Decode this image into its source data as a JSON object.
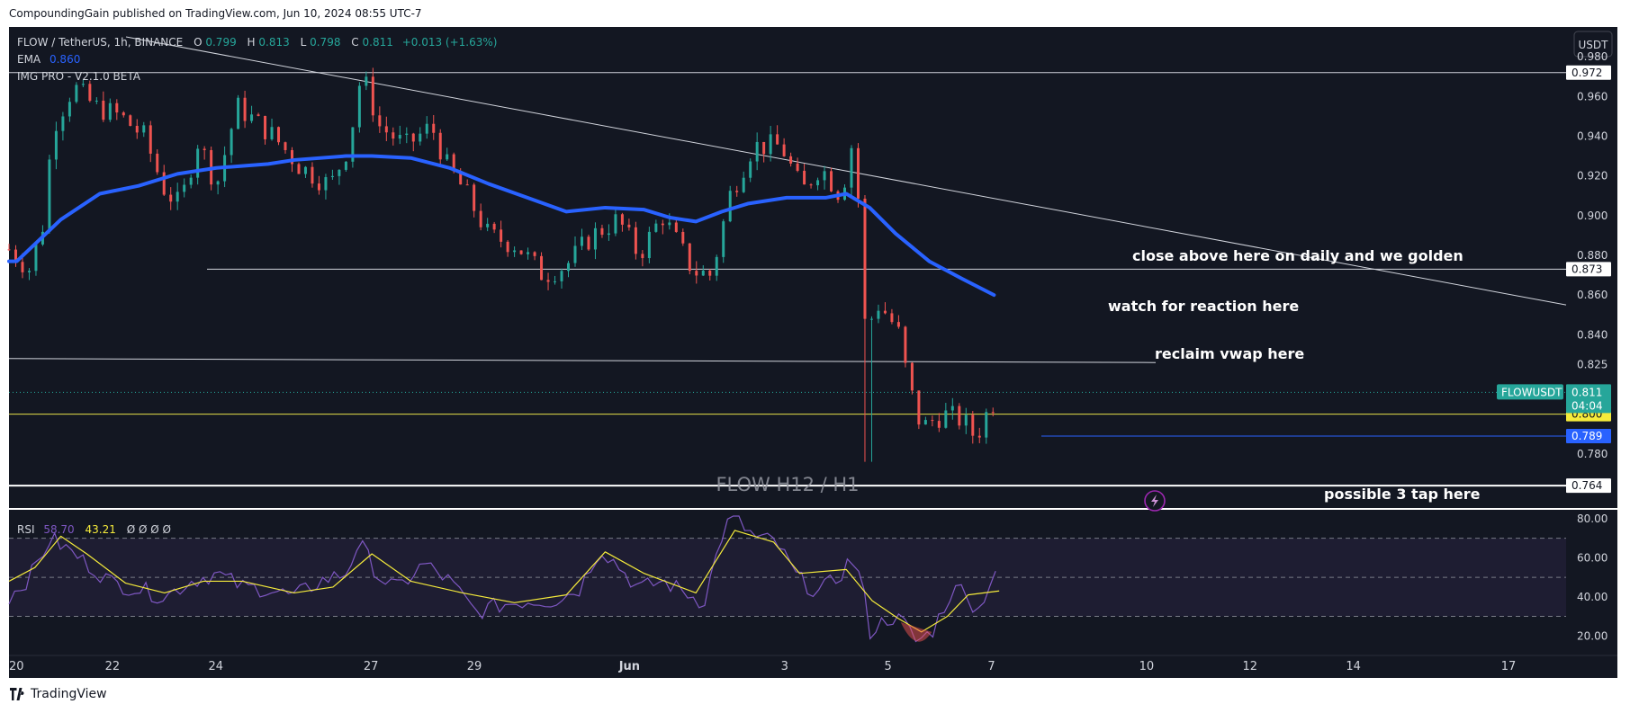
{
  "header": {
    "published": "CompoundingGain published on TradingView.com, Jun 10, 2024 08:55 UTC-7",
    "brand": "TradingView"
  },
  "legend": {
    "symbol": "FLOW / TetherUS, 1h, BINANCE",
    "o_label": "O",
    "o": "0.799",
    "h_label": "H",
    "h": "0.813",
    "l_label": "L",
    "l": "0.798",
    "c_label": "C",
    "c": "0.811",
    "change": "+0.013 (+1.63%)",
    "ema_label": "EMA",
    "ema": "0.860",
    "indicator": "IMG PRO - V2.1.0 BETA",
    "rsi_label": "RSI",
    "rsi": "58.70",
    "rsi_ma": "43.21",
    "rsi_extra": "Ø Ø Ø Ø"
  },
  "currency": "USDT",
  "watermark": "FLOW H12 / H1",
  "annotations": {
    "golden": "close above here on daily and we golden",
    "reaction": "watch for reaction here",
    "vwap": "reclaim vwap here",
    "tap": "possible 3 tap here"
  },
  "colors": {
    "background": "#131722",
    "ema": "#2962ff",
    "up": "#26a69a",
    "down": "#ef5350",
    "rsi": "#7e57c2",
    "rsi_ma": "#f5eb3b",
    "yellow_line": "#e5e04a",
    "blue_line": "#2962ff"
  },
  "chart_data": [
    {
      "type": "candlestick",
      "title": "FLOW / TetherUS, 1h, BINANCE",
      "ylim": [
        0.76,
        0.99
      ],
      "x_ticks": [
        "20",
        "22",
        "24",
        "27",
        "29",
        "Jun",
        "3",
        "5",
        "7",
        "10",
        "12",
        "14",
        "17"
      ],
      "y_ticks": [
        "0.980",
        "0.960",
        "0.940",
        "0.920",
        "0.900",
        "0.880",
        "0.860",
        "0.840",
        "0.825",
        "0.780"
      ],
      "price_labels": [
        {
          "name": "high",
          "value": 0.972,
          "label": "0.972"
        },
        {
          "name": "daily-level",
          "value": 0.873,
          "label": "0.873"
        },
        {
          "name": "support-yellow",
          "value": 0.8,
          "label": "0.800"
        },
        {
          "name": "support-blue",
          "value": 0.789,
          "label": "0.789"
        },
        {
          "name": "tap-level",
          "value": 0.764,
          "label": "0.764"
        }
      ],
      "last_price": {
        "symbol": "FLOWUSDT",
        "value": 0.811,
        "label": "0.811",
        "countdown": "04:04"
      },
      "ema_series": [
        {
          "t": 0,
          "v": 0.877
        },
        {
          "t": 0.3,
          "v": 0.877
        },
        {
          "t": 2,
          "v": 0.898
        },
        {
          "t": 3.5,
          "v": 0.911
        },
        {
          "t": 5,
          "v": 0.915
        },
        {
          "t": 6.5,
          "v": 0.921
        },
        {
          "t": 8,
          "v": 0.924
        },
        {
          "t": 10,
          "v": 0.926
        },
        {
          "t": 11,
          "v": 0.928
        },
        {
          "t": 13,
          "v": 0.93
        },
        {
          "t": 14,
          "v": 0.93
        },
        {
          "t": 15.5,
          "v": 0.929
        },
        {
          "t": 17,
          "v": 0.924
        },
        {
          "t": 18.5,
          "v": 0.916
        },
        {
          "t": 20,
          "v": 0.909
        },
        {
          "t": 21.5,
          "v": 0.902
        },
        {
          "t": 23,
          "v": 0.904
        },
        {
          "t": 24.5,
          "v": 0.903
        },
        {
          "t": 25.5,
          "v": 0.899
        },
        {
          "t": 26.5,
          "v": 0.897
        },
        {
          "t": 27.5,
          "v": 0.902
        },
        {
          "t": 28.5,
          "v": 0.906
        },
        {
          "t": 30,
          "v": 0.909
        },
        {
          "t": 31.5,
          "v": 0.909
        },
        {
          "t": 32.3,
          "v": 0.911
        },
        {
          "t": 33.2,
          "v": 0.904
        },
        {
          "t": 34.2,
          "v": 0.891
        },
        {
          "t": 35.5,
          "v": 0.877
        },
        {
          "t": 36.8,
          "v": 0.868
        },
        {
          "t": 38,
          "v": 0.86
        }
      ],
      "price_path": [
        {
          "t": 0,
          "v": 0.883
        },
        {
          "t": 0.8,
          "v": 0.873
        },
        {
          "t": 1.3,
          "v": 0.895
        },
        {
          "t": 1.7,
          "v": 0.945
        },
        {
          "t": 2.5,
          "v": 0.965
        },
        {
          "t": 3.3,
          "v": 0.955
        },
        {
          "t": 4.3,
          "v": 0.95
        },
        {
          "t": 5.2,
          "v": 0.94
        },
        {
          "t": 6,
          "v": 0.913
        },
        {
          "t": 6.6,
          "v": 0.905
        },
        {
          "t": 7.3,
          "v": 0.938
        },
        {
          "t": 8,
          "v": 0.915
        },
        {
          "t": 8.8,
          "v": 0.955
        },
        {
          "t": 10.2,
          "v": 0.94
        },
        {
          "t": 11.2,
          "v": 0.925
        },
        {
          "t": 12.4,
          "v": 0.915
        },
        {
          "t": 13.1,
          "v": 0.935
        },
        {
          "t": 13.6,
          "v": 0.972
        },
        {
          "t": 14.3,
          "v": 0.945
        },
        {
          "t": 15.3,
          "v": 0.935
        },
        {
          "t": 16.3,
          "v": 0.945
        },
        {
          "t": 16.9,
          "v": 0.925
        },
        {
          "t": 17.6,
          "v": 0.912
        },
        {
          "t": 18.5,
          "v": 0.89
        },
        {
          "t": 19.6,
          "v": 0.885
        },
        {
          "t": 20.6,
          "v": 0.87
        },
        {
          "t": 21.5,
          "v": 0.875
        },
        {
          "t": 22.5,
          "v": 0.89
        },
        {
          "t": 23.5,
          "v": 0.898
        },
        {
          "t": 24.3,
          "v": 0.88
        },
        {
          "t": 25.2,
          "v": 0.9
        },
        {
          "t": 26.4,
          "v": 0.872
        },
        {
          "t": 27.1,
          "v": 0.87
        },
        {
          "t": 27.8,
          "v": 0.91
        },
        {
          "t": 28.7,
          "v": 0.935
        },
        {
          "t": 29.8,
          "v": 0.935
        },
        {
          "t": 30.6,
          "v": 0.912
        },
        {
          "t": 31.3,
          "v": 0.925
        },
        {
          "t": 32.1,
          "v": 0.91
        },
        {
          "t": 32.5,
          "v": 0.935
        },
        {
          "t": 32.8,
          "v": 0.905
        },
        {
          "t": 33.05,
          "v": 0.855
        },
        {
          "t": 33.6,
          "v": 0.855
        },
        {
          "t": 34.3,
          "v": 0.842
        },
        {
          "t": 34.7,
          "v": 0.815
        },
        {
          "t": 35.2,
          "v": 0.793
        },
        {
          "t": 36,
          "v": 0.8
        },
        {
          "t": 36.8,
          "v": 0.797
        },
        {
          "t": 37.3,
          "v": 0.788
        },
        {
          "t": 37.7,
          "v": 0.8
        },
        {
          "t": 38.2,
          "v": 0.811
        }
      ],
      "rsi": {
        "ylim": [
          10,
          85
        ],
        "y_ticks": [
          "80.00",
          "60.00",
          "40.00",
          "20.00"
        ],
        "bands": [
          70,
          50,
          30
        ],
        "rsi_series": [
          {
            "t": 0,
            "v": 40
          },
          {
            "t": 0.8,
            "v": 50
          },
          {
            "t": 1.6,
            "v": 70
          },
          {
            "t": 2.4,
            "v": 63
          },
          {
            "t": 3.2,
            "v": 55
          },
          {
            "t": 4,
            "v": 47
          },
          {
            "t": 5,
            "v": 44
          },
          {
            "t": 6,
            "v": 40
          },
          {
            "t": 7,
            "v": 48
          },
          {
            "t": 8,
            "v": 52
          },
          {
            "t": 9,
            "v": 45
          },
          {
            "t": 10,
            "v": 44
          },
          {
            "t": 11,
            "v": 40
          },
          {
            "t": 12,
            "v": 48
          },
          {
            "t": 13,
            "v": 52
          },
          {
            "t": 13.5,
            "v": 68
          },
          {
            "t": 14.3,
            "v": 50
          },
          {
            "t": 15,
            "v": 44
          },
          {
            "t": 16,
            "v": 57
          },
          {
            "t": 17,
            "v": 48
          },
          {
            "t": 18,
            "v": 32
          },
          {
            "t": 19,
            "v": 36
          },
          {
            "t": 20,
            "v": 38
          },
          {
            "t": 21,
            "v": 38
          },
          {
            "t": 22,
            "v": 44
          },
          {
            "t": 22.8,
            "v": 65
          },
          {
            "t": 23.5,
            "v": 56
          },
          {
            "t": 24.3,
            "v": 44
          },
          {
            "t": 25.2,
            "v": 48
          },
          {
            "t": 26,
            "v": 43
          },
          {
            "t": 26.8,
            "v": 37
          },
          {
            "t": 27.6,
            "v": 76
          },
          {
            "t": 28,
            "v": 80
          },
          {
            "t": 28.8,
            "v": 70
          },
          {
            "t": 29.6,
            "v": 68
          },
          {
            "t": 30.4,
            "v": 50
          },
          {
            "t": 31.2,
            "v": 42
          },
          {
            "t": 32,
            "v": 50
          },
          {
            "t": 32.5,
            "v": 60
          },
          {
            "t": 32.9,
            "v": 48
          },
          {
            "t": 33.2,
            "v": 22
          },
          {
            "t": 34,
            "v": 30
          },
          {
            "t": 34.5,
            "v": 27
          },
          {
            "t": 35,
            "v": 17
          },
          {
            "t": 35.6,
            "v": 22
          },
          {
            "t": 36.3,
            "v": 41
          },
          {
            "t": 36.9,
            "v": 46
          },
          {
            "t": 37.3,
            "v": 30
          },
          {
            "t": 37.6,
            "v": 40
          },
          {
            "t": 38,
            "v": 52
          },
          {
            "t": 38.2,
            "v": 58
          }
        ],
        "ma_series": [
          {
            "t": 0,
            "v": 48
          },
          {
            "t": 1,
            "v": 55
          },
          {
            "t": 2,
            "v": 71
          },
          {
            "t": 3,
            "v": 62
          },
          {
            "t": 4.5,
            "v": 47
          },
          {
            "t": 6,
            "v": 42
          },
          {
            "t": 7.5,
            "v": 48
          },
          {
            "t": 9,
            "v": 48
          },
          {
            "t": 11,
            "v": 42
          },
          {
            "t": 12.5,
            "v": 45
          },
          {
            "t": 14,
            "v": 62
          },
          {
            "t": 15.5,
            "v": 48
          },
          {
            "t": 17.5,
            "v": 42
          },
          {
            "t": 19.5,
            "v": 37
          },
          {
            "t": 21.5,
            "v": 41
          },
          {
            "t": 23,
            "v": 63
          },
          {
            "t": 24.5,
            "v": 52
          },
          {
            "t": 26.5,
            "v": 42
          },
          {
            "t": 28,
            "v": 74
          },
          {
            "t": 29.5,
            "v": 68
          },
          {
            "t": 30.5,
            "v": 52
          },
          {
            "t": 32.3,
            "v": 54
          },
          {
            "t": 33.3,
            "v": 38
          },
          {
            "t": 34.3,
            "v": 29
          },
          {
            "t": 35.2,
            "v": 22
          },
          {
            "t": 36.2,
            "v": 30
          },
          {
            "t": 37,
            "v": 41
          },
          {
            "t": 38.2,
            "v": 43
          }
        ]
      }
    }
  ]
}
